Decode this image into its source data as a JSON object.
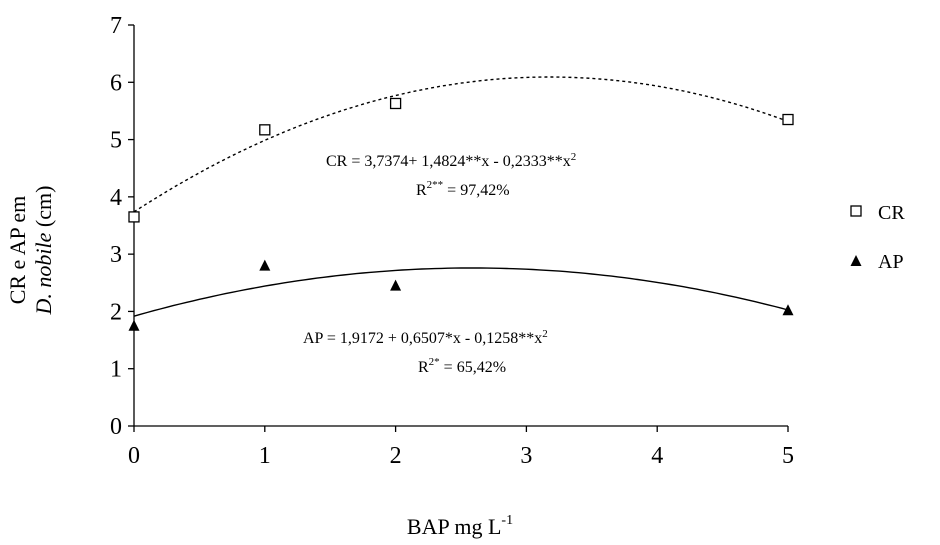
{
  "chart_data": {
    "type": "scatter",
    "xlabel": "BAP mg L",
    "xlabel_sup": "-1",
    "ylabel_line1": "CR e AP em",
    "ylabel_line2_italic": "D. nobile",
    "ylabel_line2_rest": " (cm)",
    "x_ticks": [
      0,
      1,
      2,
      3,
      4,
      5
    ],
    "y_ticks": [
      0,
      1,
      2,
      3,
      4,
      5,
      6,
      7
    ],
    "xlim": [
      0,
      5
    ],
    "ylim": [
      0,
      7
    ],
    "grid": false,
    "legend_position": "right",
    "series": [
      {
        "name": "CR",
        "marker": "open-square",
        "x": [
          0,
          1,
          2,
          5
        ],
        "y": [
          3.65,
          5.17,
          5.63,
          5.35
        ],
        "fit": {
          "type": "quadratic",
          "coefficients": [
            3.7374,
            1.4824,
            -0.2333
          ],
          "line": "dashed"
        },
        "equation_text": "CR = 3,7374+ 1,4824**x - 0,2333**x",
        "equation_sup": "2",
        "r2_prefix": "R",
        "r2_sup": "2**",
        "r2_value": " = 97,42%"
      },
      {
        "name": "AP",
        "marker": "filled-triangle",
        "x": [
          0,
          1,
          2,
          5
        ],
        "y": [
          1.75,
          2.8,
          2.45,
          2.02
        ],
        "fit": {
          "type": "quadratic",
          "coefficients": [
            1.9172,
            0.6507,
            -0.1258
          ],
          "line": "solid"
        },
        "equation_text": "AP = 1,9172 + 0,6507*x - 0,1258**x",
        "equation_sup": "2",
        "r2_prefix": "R",
        "r2_sup": "2*",
        "r2_value": " = 65,42%"
      }
    ]
  },
  "colors": {
    "ink": "#000000",
    "background": "#ffffff"
  }
}
